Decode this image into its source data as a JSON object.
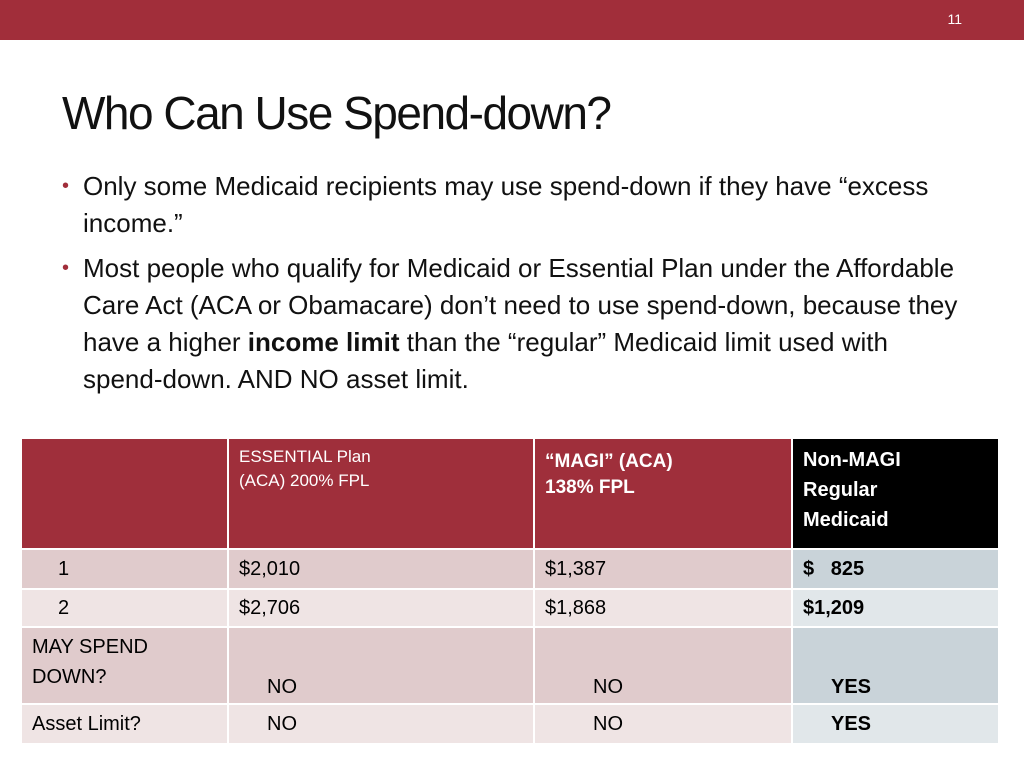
{
  "header": {
    "page_number": "11"
  },
  "title": "Who Can Use Spend-down?",
  "bullets": [
    [
      "Only some Medicaid recipients may use spend-down if they have “excess income.”"
    ],
    [
      "Most people who qualify for Medicaid  or Essential Plan under the Affordable Care Act (ACA or Obamacare) don’t need to use spend-down, because they have a higher ",
      "income limit",
      " than the “regular” Medicaid limit used with spend-down. AND NO asset limit."
    ]
  ],
  "table": {
    "header": [
      [
        "ESSENTIAL Plan",
        "(ACA) 200% FPL"
      ],
      [
        "“MAGI” (ACA)",
        "138% FPL"
      ],
      [
        "Non-MAGI",
        "Regular",
        "Medicaid"
      ]
    ],
    "rows": [
      [
        "1",
        "$2,010",
        "$1,387",
        "$   825"
      ],
      [
        "2",
        "$2,706",
        "$1,868",
        "$1,209"
      ],
      [
        "MAY SPEND DOWN?",
        "NO",
        "NO",
        "YES"
      ],
      [
        "Asset Limit?",
        "NO",
        "NO",
        "YES"
      ]
    ]
  }
}
